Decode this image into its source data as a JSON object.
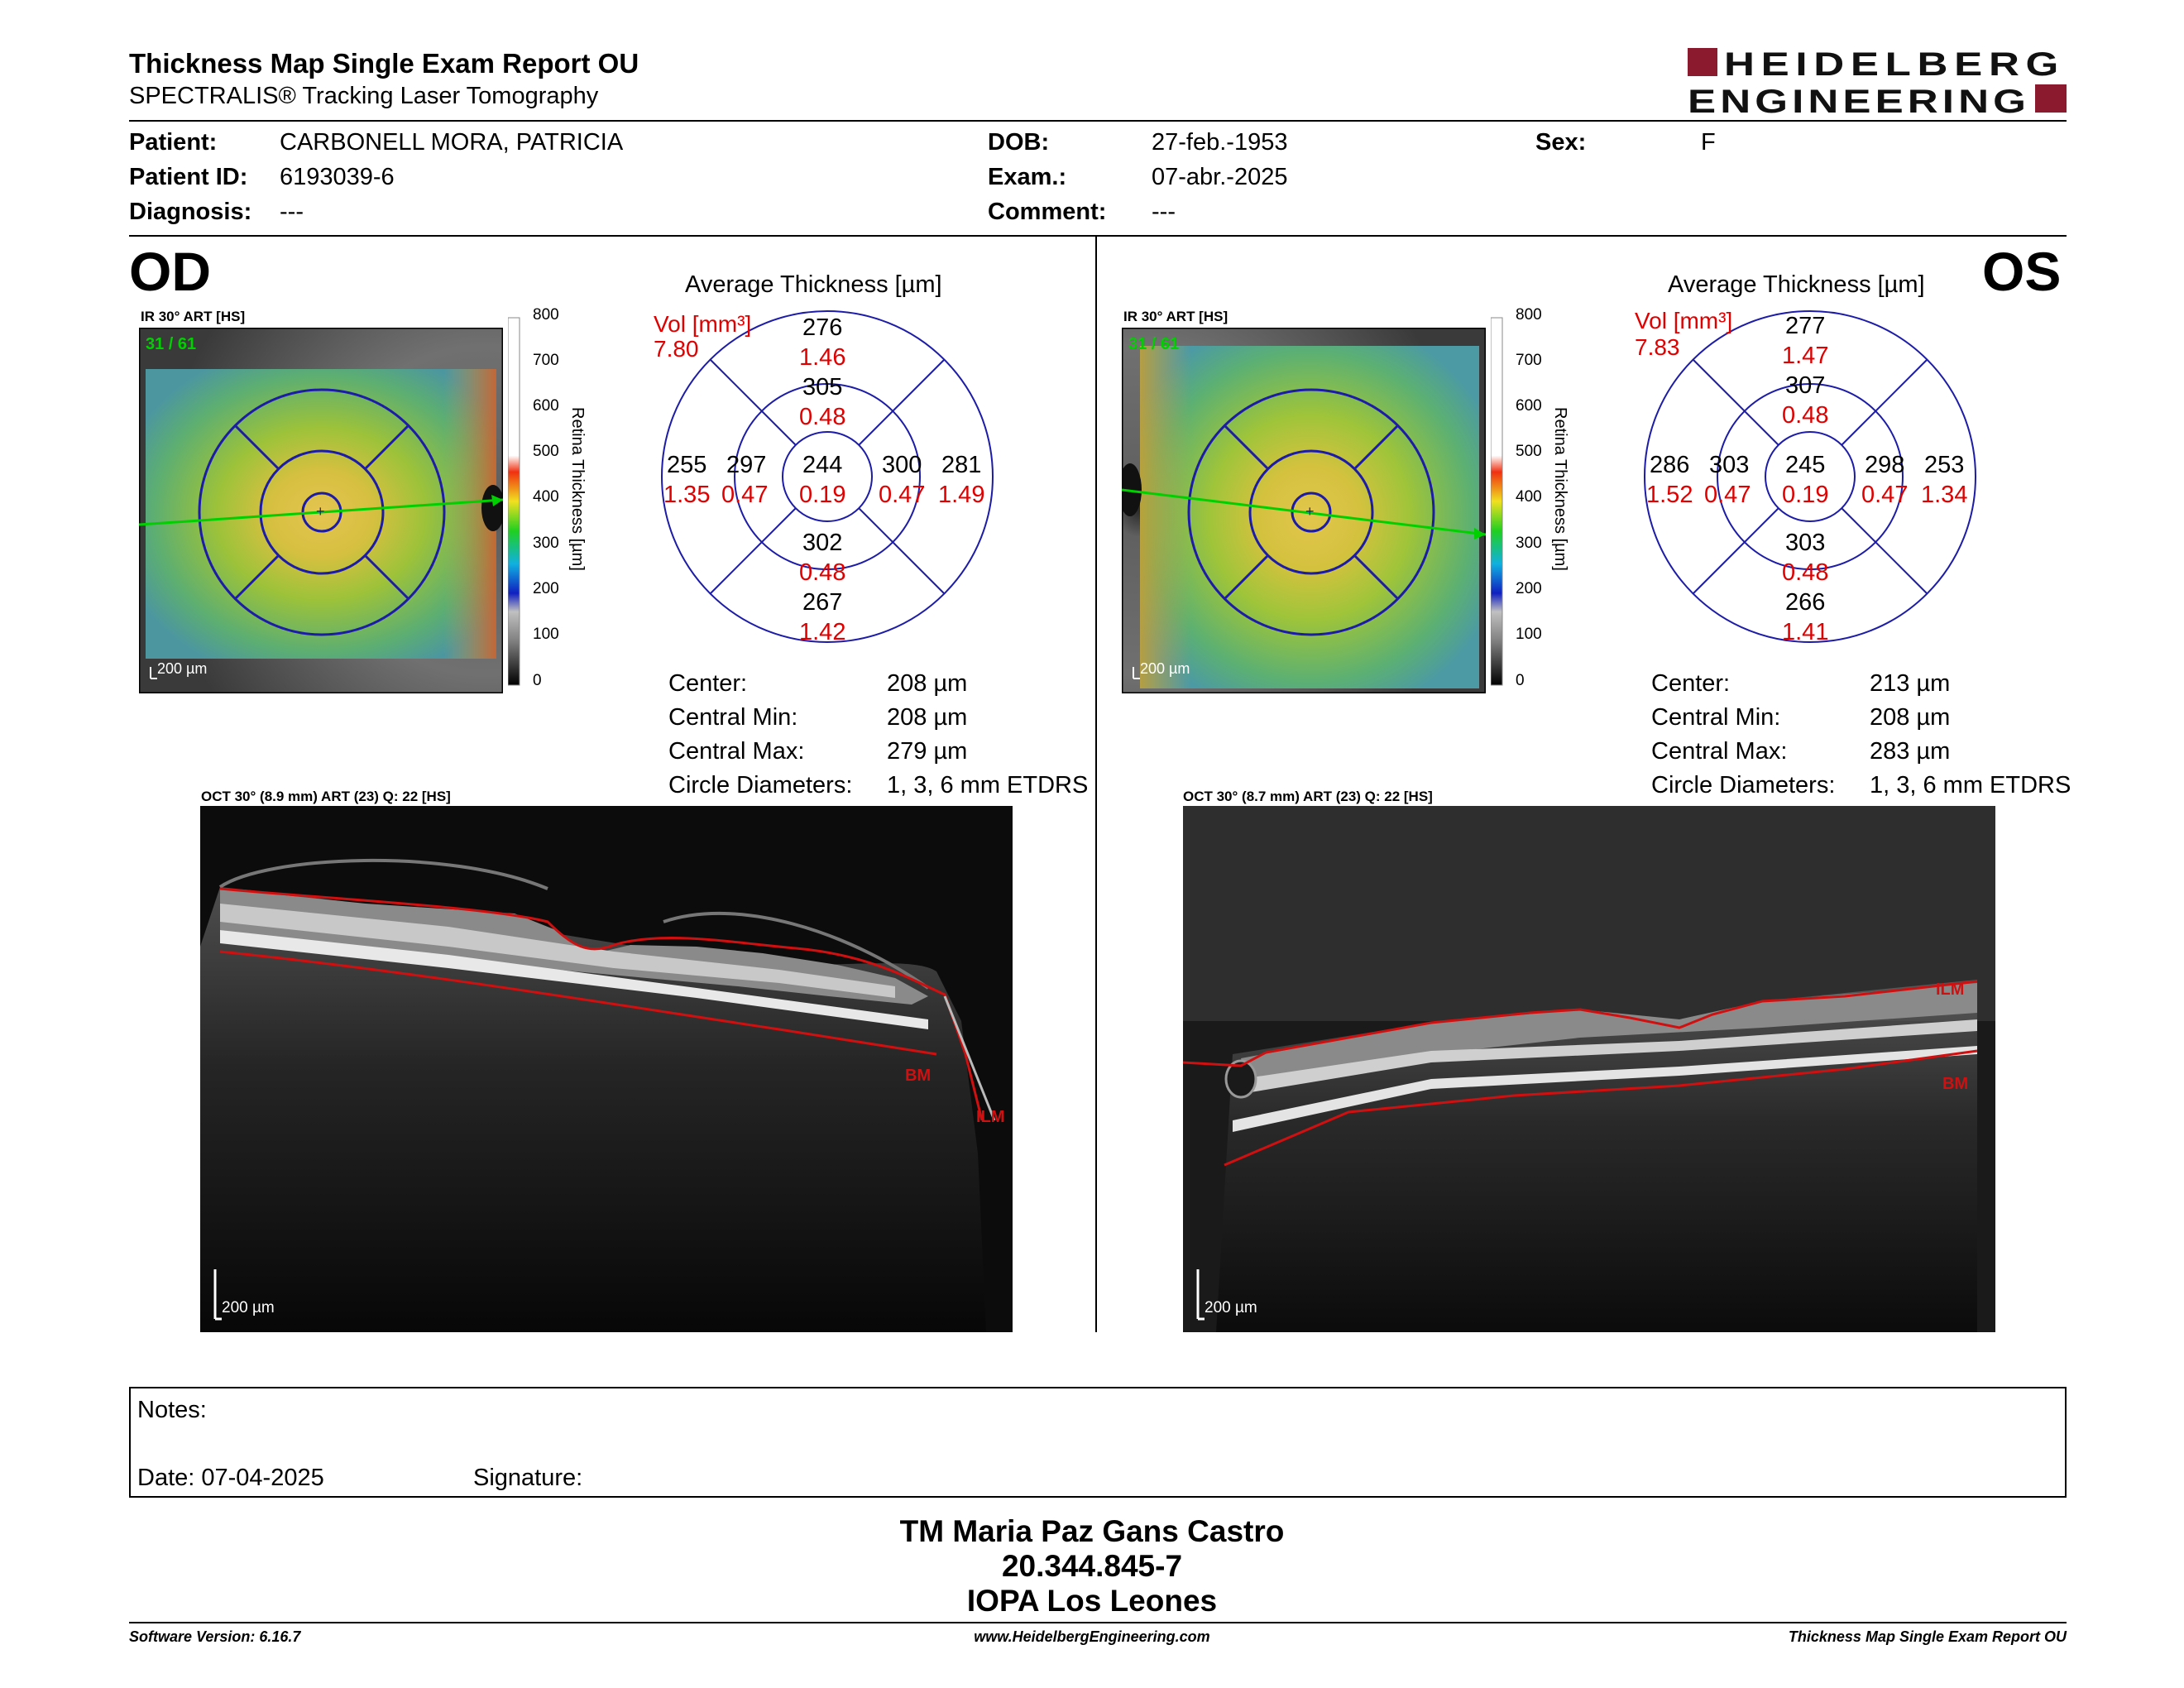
{
  "report": {
    "title": "Thickness Map Single Exam Report OU",
    "subtitle": "SPECTRALIS® Tracking Laser Tomography",
    "logo_line1": "HEIDELBERG",
    "logo_line2": "ENGINEERING",
    "brand_color": "#8b1a2e"
  },
  "patient": {
    "patient_label": "Patient:",
    "patient_value": "CARBONELL MORA, PATRICIA",
    "id_label": "Patient ID:",
    "id_value": "6193039-6",
    "diagnosis_label": "Diagnosis:",
    "diagnosis_value": "---",
    "dob_label": "DOB:",
    "dob_value": "27-feb.-1953",
    "exam_label": "Exam.:",
    "exam_value": "07-abr.-2025",
    "comment_label": "Comment:",
    "comment_value": "---",
    "sex_label": "Sex:",
    "sex_value": "F"
  },
  "od": {
    "eye": "OD",
    "ir_label": "IR 30° ART [HS]",
    "frames": "31 / 61",
    "scalebar": "200 µm",
    "avg_title": "Average Thickness [µm]",
    "vol_label": "Vol [mm³]",
    "vol_value": "7.80",
    "grid": {
      "center_t": "244",
      "center_v": "0.19",
      "inner_sup_t": "305",
      "inner_sup_v": "0.48",
      "inner_inf_t": "302",
      "inner_inf_v": "0.48",
      "inner_left_t": "297",
      "inner_left_v": "0.47",
      "inner_right_t": "300",
      "inner_right_v": "0.47",
      "outer_sup_t": "276",
      "outer_sup_v": "1.46",
      "outer_inf_t": "267",
      "outer_inf_v": "1.42",
      "outer_left_t": "255",
      "outer_left_v": "1.35",
      "outer_right_t": "281",
      "outer_right_v": "1.49"
    },
    "stats": {
      "center_label": "Center:",
      "center_value": "208 µm",
      "cmin_label": "Central Min:",
      "cmin_value": "208 µm",
      "cmax_label": "Central Max:",
      "cmax_value": "279 µm",
      "circ_label": "Circle Diameters:",
      "circ_value": "1, 3, 6 mm ETDRS"
    },
    "oct_label": "OCT 30° (8.9 mm) ART (23) Q: 22 [HS]",
    "oct_scalebar": "200 µm",
    "tag_bm": "BM",
    "tag_ilm": "ILM"
  },
  "os": {
    "eye": "OS",
    "ir_label": "IR 30° ART [HS]",
    "frames": "31 / 61",
    "scalebar": "200 µm",
    "avg_title": "Average Thickness [µm]",
    "vol_label": "Vol [mm³]",
    "vol_value": "7.83",
    "grid": {
      "center_t": "245",
      "center_v": "0.19",
      "inner_sup_t": "307",
      "inner_sup_v": "0.48",
      "inner_inf_t": "303",
      "inner_inf_v": "0.48",
      "inner_left_t": "303",
      "inner_left_v": "0.47",
      "inner_right_t": "298",
      "inner_right_v": "0.47",
      "outer_sup_t": "277",
      "outer_sup_v": "1.47",
      "outer_inf_t": "266",
      "outer_inf_v": "1.41",
      "outer_left_t": "286",
      "outer_left_v": "1.52",
      "outer_right_t": "253",
      "outer_right_v": "1.34"
    },
    "stats": {
      "center_label": "Center:",
      "center_value": "213 µm",
      "cmin_label": "Central Min:",
      "cmin_value": "208 µm",
      "cmax_label": "Central Max:",
      "cmax_value": "283 µm",
      "circ_label": "Circle Diameters:",
      "circ_value": "1, 3, 6 mm ETDRS"
    },
    "oct_label": "OCT 30° (8.7 mm) ART (23) Q: 22 [HS]",
    "oct_scalebar": "200 µm",
    "tag_bm": "BM",
    "tag_ilm": "ILM"
  },
  "color_scale": {
    "title": "Retina Thickness [µm]",
    "ticks": [
      "800",
      "700",
      "600",
      "500",
      "400",
      "300",
      "200",
      "100",
      "0"
    ]
  },
  "notes": {
    "notes_label": "Notes:",
    "date_label": "Date: 07-04-2025",
    "signature_label": "Signature:"
  },
  "signature_block": {
    "name": "TM Maria Paz Gans Castro",
    "rut": "20.344.845-7",
    "institution": "IOPA Los Leones"
  },
  "footer": {
    "software": "Software Version: 6.16.7",
    "website": "www.HeidelbergEngineering.com",
    "report": "Thickness Map Single Exam Report OU"
  },
  "colors": {
    "value_red": "#e00000",
    "grid_blue": "#1a1aa8",
    "overlay_green": "#00d000"
  }
}
